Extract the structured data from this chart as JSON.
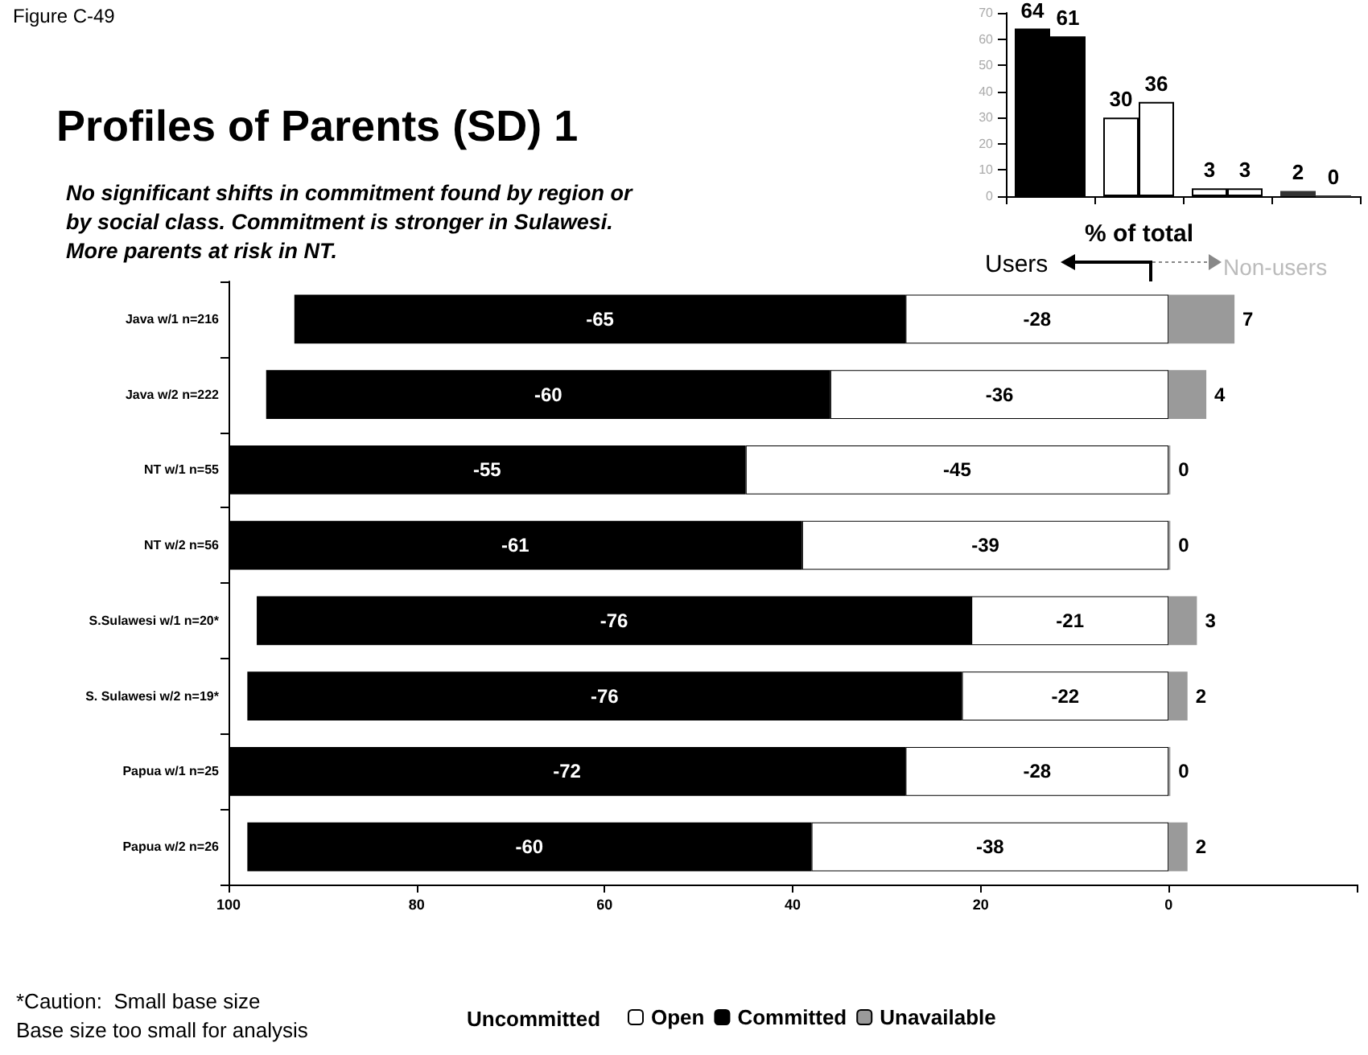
{
  "chart_data": [
    {
      "type": "bar",
      "orientation": "horizontal",
      "stacked": true,
      "title": "Profiles of Parents (SD) 1",
      "subtitle": "No significant shifts in commitment found by region or\nby social class. Commitment is stronger in Sulawesi.\nMore parents at risk in NT.",
      "xlabel": "% of total",
      "legend_title": "Uncommitted",
      "legend": "bottom",
      "grid": false,
      "annotations": [
        "Figure C-49",
        "Users",
        "Non-users",
        "*Caution:  Small base size",
        "Base size too small for analysis"
      ],
      "categories": [
        "Java w/1 n=216",
        "Java w/2 n=222",
        "NT w/1 n=55",
        "NT w/2 n=56",
        "S.Sulawesi w/1 n=20*",
        "S. Sulawesi w/2 n=19*",
        "Papua w/1 n=25",
        "Papua w/2 n=26"
      ],
      "xlim": [
        -100,
        20
      ],
      "xticks": [
        {
          "value": -100,
          "label": "100"
        },
        {
          "value": -80,
          "label": "80"
        },
        {
          "value": -60,
          "label": "60"
        },
        {
          "value": -40,
          "label": "40"
        },
        {
          "value": -20,
          "label": "20"
        },
        0,
        {
          "value": 20,
          "label": null
        }
      ],
      "data_labels": true,
      "series": [
        {
          "name": "Open",
          "color": "#ffffff",
          "values": [
            -28,
            -36,
            -45,
            -39,
            -21,
            -22,
            -28,
            -38
          ]
        },
        {
          "name": "Committed",
          "color": "#000000",
          "values": [
            -65,
            -60,
            -55,
            -61,
            -76,
            -76,
            -72,
            -60
          ]
        },
        {
          "name": "Unavailable",
          "color": "#9a9a9a",
          "values": [
            7,
            4,
            0,
            0,
            3,
            2,
            0,
            2
          ]
        }
      ]
    },
    {
      "type": "bar",
      "categories": [
        null,
        null,
        null,
        null
      ],
      "ylim": [
        0,
        70
      ],
      "yticks": [
        0,
        10,
        20,
        30,
        40,
        50,
        60,
        70
      ],
      "data_labels": true,
      "grid": false,
      "legend": false,
      "series": [
        {
          "values": [
            64,
            30,
            3,
            2
          ],
          "colors": [
            "#000000",
            "#ffffff",
            "#ffffff",
            "#333333"
          ]
        },
        {
          "values": [
            61,
            36,
            3,
            0
          ],
          "colors": [
            "#000000",
            "#ffffff",
            "#ffffff",
            "#333333"
          ]
        }
      ]
    }
  ]
}
